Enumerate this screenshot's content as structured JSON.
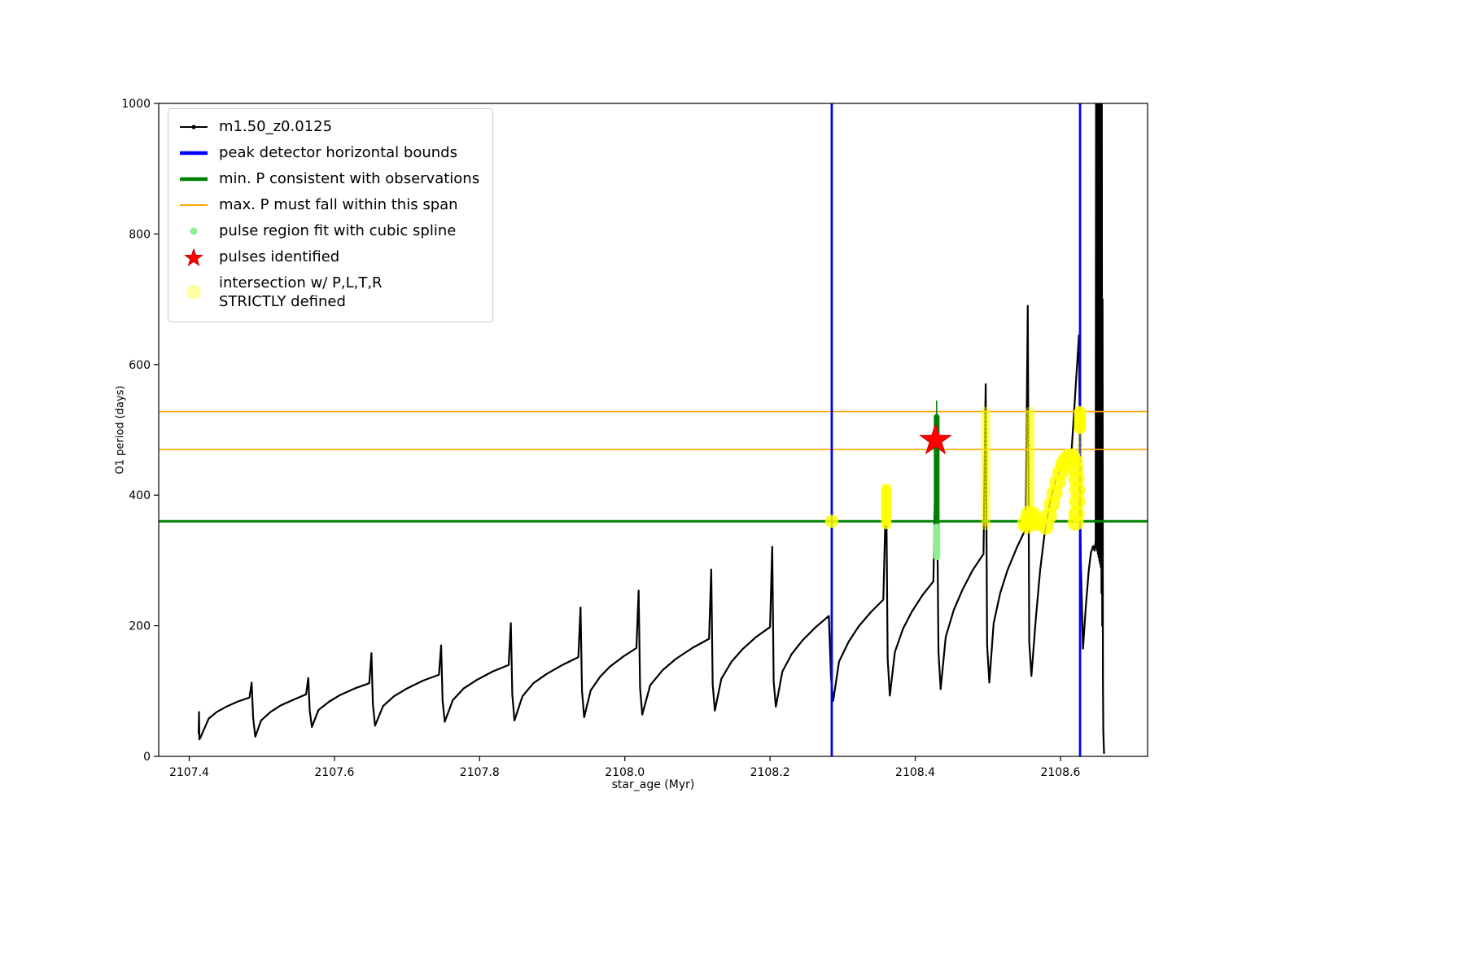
{
  "figure": {
    "background": "#ffffff"
  },
  "chart_data": {
    "type": "line",
    "title": "",
    "xlabel": "star_age (Myr)",
    "ylabel": "O1 period (days)",
    "xlim": [
      2107.358,
      2108.72
    ],
    "ylim": [
      0,
      1000
    ],
    "grid": false,
    "xticks": {
      "values": [
        2107.4,
        2107.6,
        2107.8,
        2108.0,
        2108.2,
        2108.4,
        2108.6
      ],
      "labels": [
        "2107.4",
        "2107.6",
        "2107.8",
        "2108.0",
        "2108.2",
        "2108.4",
        "2108.6"
      ]
    },
    "yticks": {
      "values": [
        0,
        200,
        400,
        600,
        800,
        1000
      ],
      "labels": [
        "0",
        "200",
        "400",
        "600",
        "800",
        "1000"
      ]
    },
    "legend": {
      "position": "upper left",
      "entries": [
        {
          "swatch": "line-dot",
          "color": "#000000",
          "label": "m1.50_z0.0125"
        },
        {
          "swatch": "thick-line",
          "color": "#0000ff",
          "label": "peak detector horizontal bounds"
        },
        {
          "swatch": "thick-line",
          "color": "#008000",
          "label": "min. P consistent with observations"
        },
        {
          "swatch": "line",
          "color": "#ffa500",
          "label": "max. P must fall within this span"
        },
        {
          "swatch": "dot-small",
          "color": "#90ee90",
          "label": "pulse region fit with cubic spline"
        },
        {
          "swatch": "star",
          "color": "#ff0000",
          "label": "pulses identified"
        },
        {
          "swatch": "dot-big",
          "color": "#ffff99",
          "label": "intersection w/ P,L,T,R\nSTRICTLY defined"
        }
      ]
    },
    "series": [
      {
        "name": "m1.50_z0.0125",
        "color": "#000000",
        "width": 2.2,
        "points": [
          [
            2107.413,
            35
          ],
          [
            2107.4135,
            68
          ],
          [
            2107.414,
            26
          ],
          [
            2107.416,
            30
          ],
          [
            2107.419,
            38
          ],
          [
            2107.427,
            58
          ],
          [
            2107.438,
            68
          ],
          [
            2107.451,
            76
          ],
          [
            2107.467,
            84
          ],
          [
            2107.483,
            90
          ],
          [
            2107.486,
            113
          ],
          [
            2107.488,
            60
          ],
          [
            2107.491,
            30
          ],
          [
            2107.499,
            55
          ],
          [
            2107.512,
            68
          ],
          [
            2107.526,
            78
          ],
          [
            2107.544,
            87
          ],
          [
            2107.561,
            95
          ],
          [
            2107.564,
            120
          ],
          [
            2107.566,
            70
          ],
          [
            2107.569,
            45
          ],
          [
            2107.578,
            71
          ],
          [
            2107.593,
            84
          ],
          [
            2107.608,
            94
          ],
          [
            2107.628,
            104
          ],
          [
            2107.648,
            112
          ],
          [
            2107.651,
            158
          ],
          [
            2107.653,
            80
          ],
          [
            2107.656,
            47
          ],
          [
            2107.667,
            77
          ],
          [
            2107.682,
            92
          ],
          [
            2107.7,
            104
          ],
          [
            2107.722,
            116
          ],
          [
            2107.744,
            125
          ],
          [
            2107.747,
            170
          ],
          [
            2107.749,
            85
          ],
          [
            2107.752,
            53
          ],
          [
            2107.763,
            86
          ],
          [
            2107.778,
            104
          ],
          [
            2107.796,
            117
          ],
          [
            2107.818,
            130
          ],
          [
            2107.84,
            140
          ],
          [
            2107.843,
            204
          ],
          [
            2107.845,
            95
          ],
          [
            2107.848,
            55
          ],
          [
            2107.859,
            92
          ],
          [
            2107.874,
            112
          ],
          [
            2107.892,
            126
          ],
          [
            2107.914,
            140
          ],
          [
            2107.936,
            152
          ],
          [
            2107.939,
            228
          ],
          [
            2107.941,
            100
          ],
          [
            2107.944,
            60
          ],
          [
            2107.953,
            101
          ],
          [
            2107.966,
            122
          ],
          [
            2107.98,
            138
          ],
          [
            2107.998,
            153
          ],
          [
            2108.016,
            166
          ],
          [
            2108.019,
            254
          ],
          [
            2108.021,
            105
          ],
          [
            2108.024,
            64
          ],
          [
            2108.035,
            109
          ],
          [
            2108.052,
            132
          ],
          [
            2108.07,
            149
          ],
          [
            2108.093,
            166
          ],
          [
            2108.116,
            180
          ],
          [
            2108.119,
            286
          ],
          [
            2108.121,
            110
          ],
          [
            2108.124,
            70
          ],
          [
            2108.133,
            119
          ],
          [
            2108.147,
            145
          ],
          [
            2108.162,
            164
          ],
          [
            2108.181,
            183
          ],
          [
            2108.2,
            198
          ],
          [
            2108.203,
            321
          ],
          [
            2108.205,
            115
          ],
          [
            2108.208,
            76
          ],
          [
            2108.217,
            130
          ],
          [
            2108.23,
            157
          ],
          [
            2108.245,
            178
          ],
          [
            2108.263,
            198
          ],
          [
            2108.281,
            215
          ],
          [
            2108.284,
            120
          ],
          [
            2108.287,
            85
          ],
          [
            2108.295,
            145
          ],
          [
            2108.308,
            175
          ],
          [
            2108.322,
            199
          ],
          [
            2108.339,
            221
          ],
          [
            2108.356,
            240
          ],
          [
            2108.36,
            412
          ],
          [
            2108.362,
            150
          ],
          [
            2108.365,
            93
          ],
          [
            2108.372,
            160
          ],
          [
            2108.383,
            195
          ],
          [
            2108.395,
            221
          ],
          [
            2108.41,
            247
          ],
          [
            2108.425,
            268
          ],
          [
            2108.429,
            520
          ],
          [
            2108.432,
            160
          ],
          [
            2108.435,
            103
          ],
          [
            2108.442,
            183
          ],
          [
            2108.453,
            224
          ],
          [
            2108.465,
            255
          ],
          [
            2108.479,
            285
          ],
          [
            2108.494,
            310
          ],
          [
            2108.497,
            570
          ],
          [
            2108.499,
            170
          ],
          [
            2108.502,
            113
          ],
          [
            2108.508,
            204
          ],
          [
            2108.517,
            250
          ],
          [
            2108.527,
            285
          ],
          [
            2108.54,
            320
          ],
          [
            2108.552,
            348
          ],
          [
            2108.555,
            690
          ],
          [
            2108.557,
            175
          ],
          [
            2108.56,
            123
          ],
          [
            2108.566,
            210
          ],
          [
            2108.572,
            285
          ],
          [
            2108.578,
            340
          ],
          [
            2108.586,
            392
          ],
          [
            2108.594,
            425
          ],
          [
            2108.602,
            445
          ],
          [
            2108.609,
            456
          ],
          [
            2108.615,
            462
          ],
          [
            2108.6255,
            645
          ],
          [
            2108.628,
            300
          ],
          [
            2108.631,
            165
          ],
          [
            2108.635,
            230
          ],
          [
            2108.639,
            285
          ],
          [
            2108.642,
            312
          ],
          [
            2108.645,
            322
          ],
          [
            2108.647,
            315
          ],
          [
            2108.6485,
            330
          ],
          [
            2108.649,
            1005
          ],
          [
            2108.6495,
            320
          ],
          [
            2108.65,
            1005
          ],
          [
            2108.6505,
            315
          ],
          [
            2108.651,
            1005
          ],
          [
            2108.6515,
            310
          ],
          [
            2108.652,
            1005
          ],
          [
            2108.6525,
            305
          ],
          [
            2108.653,
            1005
          ],
          [
            2108.6535,
            300
          ],
          [
            2108.654,
            1005
          ],
          [
            2108.6545,
            295
          ],
          [
            2108.655,
            1005
          ],
          [
            2108.6555,
            290
          ],
          [
            2108.656,
            1005
          ],
          [
            2108.6565,
            250
          ],
          [
            2108.657,
            1005
          ],
          [
            2108.6575,
            200
          ],
          [
            2108.658,
            700
          ],
          [
            2108.6585,
            120
          ],
          [
            2108.659,
            40
          ],
          [
            2108.66,
            5
          ]
        ]
      }
    ],
    "vlines": [
      {
        "name": "peak-detector-left-bound",
        "x": 2108.285,
        "color": "#0000ff",
        "width": 2.8
      },
      {
        "name": "peak-detector-right-bound",
        "x": 2108.627,
        "color": "#0000ff",
        "width": 2.8
      }
    ],
    "hlines": [
      {
        "name": "min-P-consistent",
        "y": 360,
        "color": "#008000",
        "width": 3.0
      },
      {
        "name": "max-P-span-lower",
        "y": 470,
        "color": "#ffa500",
        "width": 1.6
      },
      {
        "name": "max-P-span-upper",
        "y": 528,
        "color": "#ffa500",
        "width": 1.6
      }
    ],
    "pulse_fit": {
      "color": "#008000",
      "x": 2108.4295,
      "bar": {
        "y_from": 352,
        "y_to": 520,
        "width": 7
      },
      "tip": {
        "y_to": 545,
        "width": 1.6
      }
    },
    "spline_points": {
      "color": "#90ee90",
      "x": 2108.4295,
      "y_range": [
        306,
        352,
        5
      ],
      "r": 4.5
    },
    "pulses": {
      "color": "#ff0000",
      "points": [
        [
          2108.428,
          484
        ]
      ],
      "outer_r": 20,
      "inner_r": 7.8
    },
    "intersections": {
      "color": "#ffff00",
      "clusters": [
        {
          "name": "left-bound-dot",
          "pts": [
            [
              2108.285,
              360
            ]
          ],
          "r": 8,
          "opacity": 0.85
        },
        {
          "name": "column-2108.36",
          "x": 2108.36,
          "y_range": [
            356,
            414,
            6
          ],
          "r": 6.5,
          "opacity": 0.85
        },
        {
          "name": "column-2108.497",
          "x": 2108.497,
          "y_range": [
            354,
            528,
            6
          ],
          "r": 6,
          "opacity": 0.4
        },
        {
          "name": "column-2108.558",
          "x": 2108.558,
          "y_range": [
            354,
            528,
            6
          ],
          "r": 6,
          "opacity": 0.4
        },
        {
          "name": "blob-2108.558",
          "pts": [
            [
              2108.55,
              356
            ],
            [
              2108.554,
              352
            ],
            [
              2108.558,
              357
            ],
            [
              2108.562,
              361
            ],
            [
              2108.566,
              356
            ],
            [
              2108.554,
              366
            ],
            [
              2108.56,
              369
            ],
            [
              2108.556,
              373
            ],
            [
              2108.564,
              371
            ],
            [
              2108.57,
              360
            ]
          ],
          "r": 9,
          "opacity": 0.75
        },
        {
          "name": "crescent",
          "pts": [
            [
              2108.58,
              352
            ],
            [
              2108.584,
              368
            ],
            [
              2108.588,
              386
            ],
            [
              2108.592,
              403
            ],
            [
              2108.596,
              420
            ],
            [
              2108.6,
              435
            ],
            [
              2108.604,
              447
            ],
            [
              2108.608,
              455
            ],
            [
              2108.612,
              459
            ],
            [
              2108.616,
              459
            ],
            [
              2108.619,
              452
            ],
            [
              2108.621,
              440
            ],
            [
              2108.622,
              425
            ],
            [
              2108.623,
              408
            ],
            [
              2108.623,
              390
            ],
            [
              2108.622,
              372
            ],
            [
              2108.621,
              358
            ]
          ],
          "r": 10,
          "opacity": 0.85
        },
        {
          "name": "right-bound-top-blob",
          "x": 2108.627,
          "y_range": [
            503,
            529,
            6
          ],
          "r": 7.5,
          "opacity": 0.9
        },
        {
          "name": "right-bound-column",
          "x": 2108.627,
          "y_range": [
            360,
            500,
            9
          ],
          "r": 4.5,
          "opacity": 0.28
        }
      ]
    }
  }
}
